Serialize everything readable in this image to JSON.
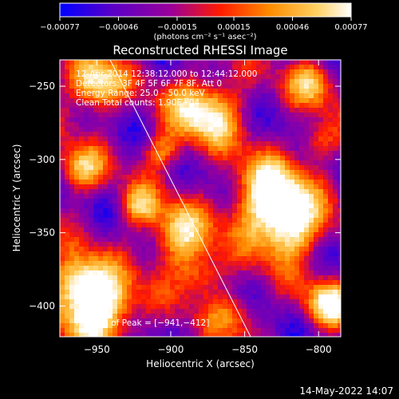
{
  "chart_data": {
    "type": "heatmap",
    "title": "Reconstructed RHESSI Image",
    "xlabel": "Heliocentric X (arcsec)",
    "ylabel": "Heliocentric Y (arcsec)",
    "xlim": [
      -975,
      -785
    ],
    "ylim": [
      -421,
      -232
    ],
    "x_ticks": [
      -950,
      -900,
      -850,
      -800
    ],
    "x_tick_labels": [
      "−950",
      "−900",
      "−850",
      "−800"
    ],
    "y_ticks": [
      -250,
      -300,
      -350,
      -400
    ],
    "y_tick_labels": [
      "−250",
      "−300",
      "−350",
      "−400"
    ],
    "colorbar": {
      "range": [
        -0.00077,
        0.00077
      ],
      "ticks": [
        -0.00077,
        -0.00046,
        -0.00015,
        0.00015,
        0.00046,
        0.00077
      ],
      "tick_labels": [
        "−0.00077",
        "−0.00046",
        "−0.00015",
        "0.00015",
        "0.00046",
        "0.00077"
      ],
      "units_label": "(photons cm⁻² s⁻¹ asec⁻²)",
      "colors": [
        "#0000ff",
        "#5a00c8",
        "#9a009a",
        "#ff1a00",
        "#ff8c00",
        "#ffd060",
        "#ffffff"
      ]
    },
    "overlay": {
      "line1": "12‑Apr‑2014 12:38:12.000 to 12:44:12.000",
      "line2": "Detectors: 3F 4F 5F 6F 7F 8F, Att 0",
      "line3": "Energy Range: 25.0 – 50.0 keV",
      "line4": "Clean     Total counts: 1.90E+04",
      "peak": "Position of Peak = [−941,−412]"
    },
    "limb_line": {
      "x": [
        -941,
        -846
      ],
      "y": [
        -232,
        -421
      ]
    },
    "timestamp": "14‑May‑2022 14:07"
  }
}
